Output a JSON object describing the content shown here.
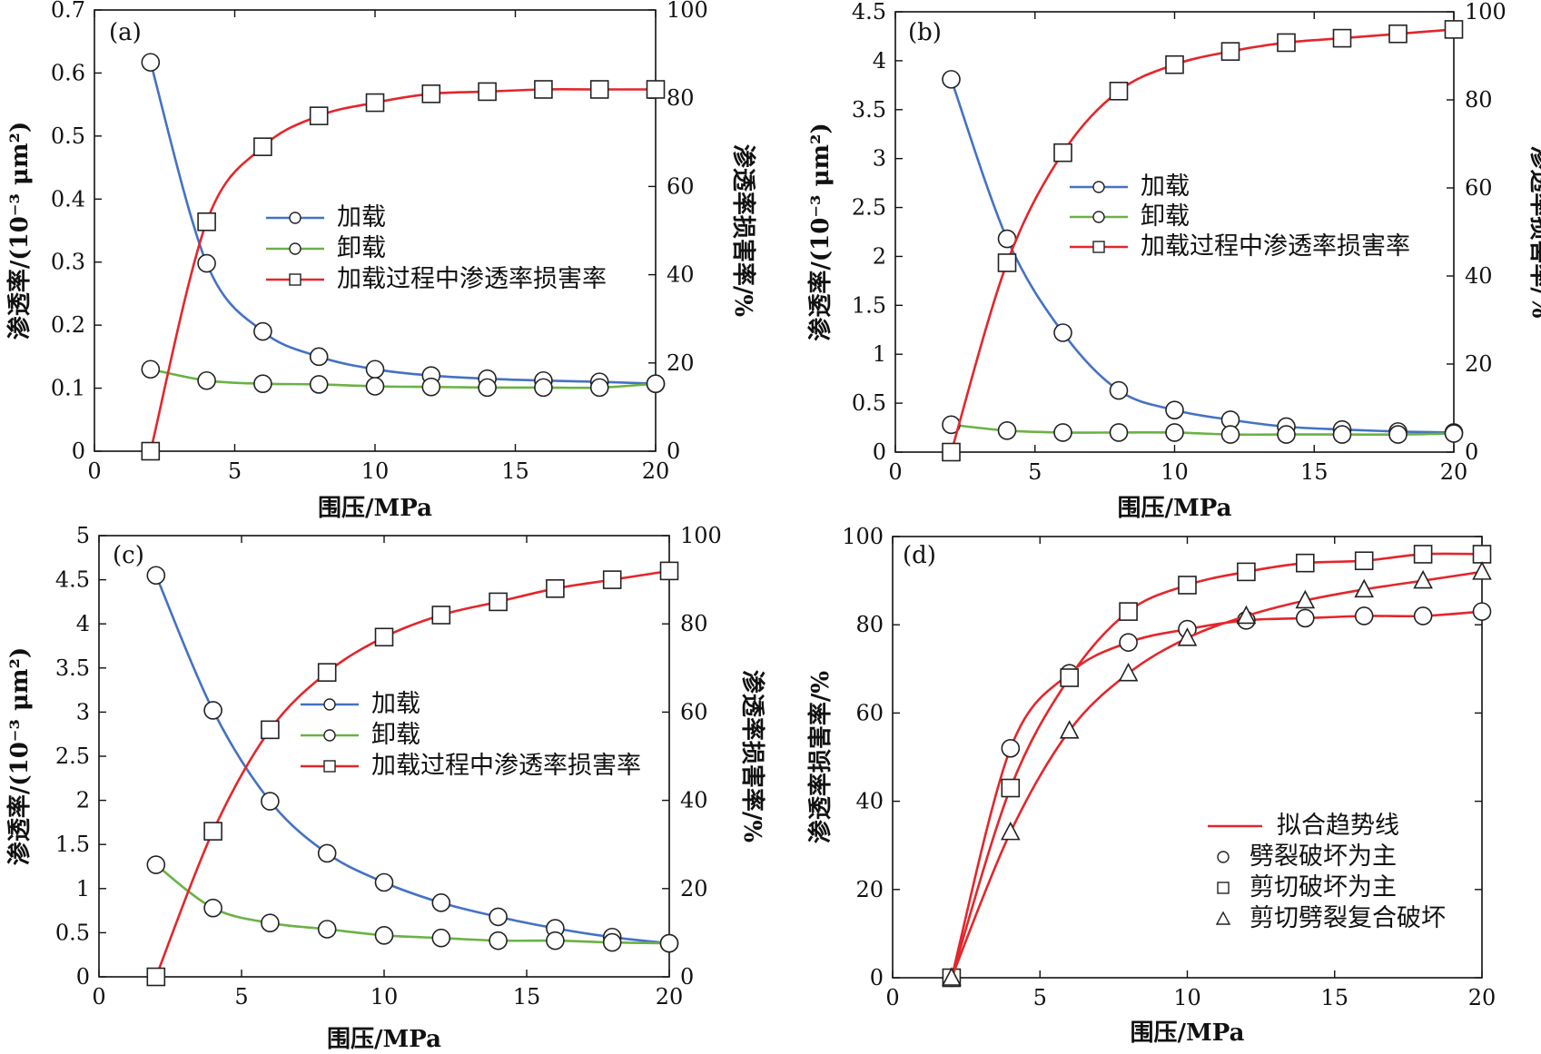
{
  "chart_data": [
    {
      "panel_label": "(a)",
      "type": "line",
      "xlabel": "围压/MPa",
      "ylabel_left": "渗透率/(10⁻³ μm²)",
      "ylabel_right": "渗透率损害率/%",
      "xlim": [
        0,
        20
      ],
      "ylim_left": [
        0,
        0.7
      ],
      "ylim_right": [
        0,
        100
      ],
      "xticks": [
        "0",
        "5",
        "10",
        "15",
        "20"
      ],
      "yticks_left": [
        "0",
        "0.1",
        "0.2",
        "0.3",
        "0.4",
        "0.5",
        "0.6",
        "0.7"
      ],
      "yticks_right": [
        "0",
        "20",
        "40",
        "60",
        "80",
        "100"
      ],
      "legend_placement": "center",
      "series": [
        {
          "name": "加载",
          "axis": "left",
          "color": "#4472c4",
          "marker": "circle",
          "x": [
            2,
            4,
            6,
            8,
            10,
            12,
            14,
            16,
            18,
            20
          ],
          "y": [
            0.617,
            0.298,
            0.19,
            0.15,
            0.13,
            0.12,
            0.115,
            0.112,
            0.11,
            0.107
          ]
        },
        {
          "name": "卸载",
          "axis": "left",
          "color": "#6ab244",
          "marker": "circle",
          "x": [
            2,
            4,
            6,
            8,
            10,
            12,
            14,
            16,
            18,
            20
          ],
          "y": [
            0.13,
            0.112,
            0.107,
            0.106,
            0.103,
            0.102,
            0.101,
            0.101,
            0.101,
            0.107
          ]
        },
        {
          "name": "加载过程中渗透率损害率",
          "axis": "right",
          "color": "#e4262b",
          "marker": "square",
          "x": [
            2,
            4,
            6,
            8,
            10,
            12,
            14,
            16,
            18,
            20
          ],
          "y": [
            0,
            52,
            69,
            76,
            79,
            81,
            81.5,
            82,
            82,
            82
          ]
        }
      ]
    },
    {
      "panel_label": "(b)",
      "type": "line",
      "xlabel": "围压/MPa",
      "ylabel_left": "渗透率/(10⁻³ μm²)",
      "ylabel_right": "渗透率损害率/%",
      "xlim": [
        0,
        20
      ],
      "ylim_left": [
        0,
        4.5
      ],
      "ylim_right": [
        0,
        100
      ],
      "xticks": [
        "0",
        "5",
        "10",
        "15",
        "20"
      ],
      "yticks_left": [
        "0",
        "0.5",
        "1",
        "1.5",
        "2",
        "2.5",
        "3",
        "3.5",
        "4",
        "4.5"
      ],
      "yticks_right": [
        "0",
        "20",
        "40",
        "60",
        "80",
        "100"
      ],
      "legend_placement": "upper center",
      "series": [
        {
          "name": "加载",
          "axis": "left",
          "color": "#4472c4",
          "marker": "circle",
          "x": [
            2,
            4,
            6,
            8,
            10,
            12,
            14,
            16,
            18,
            20
          ],
          "y": [
            3.81,
            2.18,
            1.22,
            0.63,
            0.43,
            0.33,
            0.26,
            0.23,
            0.21,
            0.2
          ]
        },
        {
          "name": "卸载",
          "axis": "left",
          "color": "#6ab244",
          "marker": "circle",
          "x": [
            2,
            4,
            6,
            8,
            10,
            12,
            14,
            16,
            18,
            20
          ],
          "y": [
            0.28,
            0.22,
            0.2,
            0.2,
            0.2,
            0.18,
            0.18,
            0.18,
            0.18,
            0.19
          ]
        },
        {
          "name": "加载过程中渗透率损害率",
          "axis": "right",
          "color": "#e4262b",
          "marker": "square",
          "x": [
            2,
            4,
            6,
            8,
            10,
            12,
            14,
            16,
            18,
            20
          ],
          "y": [
            0,
            43,
            68,
            82,
            88,
            91,
            93,
            94,
            95,
            96
          ]
        }
      ]
    },
    {
      "panel_label": "(c)",
      "type": "line",
      "xlabel": "围压/MPa",
      "ylabel_left": "渗透率/(10⁻³ μm²)",
      "ylabel_right": "渗透率损害率/%",
      "xlim": [
        0,
        20
      ],
      "ylim_left": [
        0,
        5
      ],
      "ylim_right": [
        0,
        100
      ],
      "xticks": [
        "0",
        "5",
        "10",
        "15",
        "20"
      ],
      "yticks_left": [
        "0",
        "0.5",
        "1",
        "1.5",
        "2",
        "2.5",
        "3",
        "3.5",
        "4",
        "4.5",
        "5"
      ],
      "yticks_right": [
        "0",
        "20",
        "40",
        "60",
        "80",
        "100"
      ],
      "legend_placement": "center",
      "series": [
        {
          "name": "加载",
          "axis": "left",
          "color": "#4472c4",
          "marker": "circle",
          "x": [
            2,
            4,
            6,
            8,
            10,
            12,
            14,
            16,
            18,
            20
          ],
          "y": [
            4.55,
            3.02,
            1.99,
            1.4,
            1.07,
            0.84,
            0.68,
            0.55,
            0.45,
            0.38
          ]
        },
        {
          "name": "卸载",
          "axis": "left",
          "color": "#6ab244",
          "marker": "circle",
          "x": [
            2,
            4,
            6,
            8,
            10,
            12,
            14,
            16,
            18,
            20
          ],
          "y": [
            1.27,
            0.78,
            0.61,
            0.54,
            0.47,
            0.44,
            0.41,
            0.41,
            0.39,
            0.38
          ]
        },
        {
          "name": "加载过程中渗透率损害率",
          "axis": "right",
          "color": "#e4262b",
          "marker": "square",
          "x": [
            2,
            4,
            6,
            8,
            10,
            12,
            14,
            16,
            18,
            20
          ],
          "y": [
            0,
            33,
            56,
            69,
            77,
            82,
            85,
            88,
            90,
            92
          ]
        }
      ]
    },
    {
      "panel_label": "(d)",
      "type": "scatter",
      "xlabel": "围压/MPa",
      "ylabel": "渗透率损害率/%",
      "xlim": [
        0,
        20
      ],
      "ylim": [
        0,
        100
      ],
      "xticks": [
        "0",
        "5",
        "10",
        "15",
        "20"
      ],
      "yticks": [
        "0",
        "20",
        "40",
        "60",
        "80",
        "100"
      ],
      "legend_placement": "lower right",
      "fit_legend": {
        "name": "拟合趋势线",
        "color": "#e4262b"
      },
      "series": [
        {
          "name": "劈裂破坏为主",
          "marker": "circle",
          "x": [
            2,
            4,
            6,
            8,
            10,
            12,
            14,
            16,
            18,
            20
          ],
          "y": [
            0,
            52,
            69,
            76,
            79,
            81,
            81.5,
            82,
            82,
            83
          ]
        },
        {
          "name": "剪切破坏为主",
          "marker": "square",
          "x": [
            2,
            4,
            6,
            8,
            10,
            12,
            14,
            16,
            18,
            20
          ],
          "y": [
            0,
            43,
            68,
            83,
            89,
            92,
            94,
            94.5,
            96,
            96
          ]
        },
        {
          "name": "剪切劈裂复合破坏",
          "marker": "triangle",
          "x": [
            2,
            4,
            6,
            8,
            10,
            12,
            14,
            16,
            18,
            20
          ],
          "y": [
            0,
            33,
            56,
            69,
            77,
            82,
            85.5,
            88,
            90,
            92
          ]
        }
      ]
    }
  ]
}
